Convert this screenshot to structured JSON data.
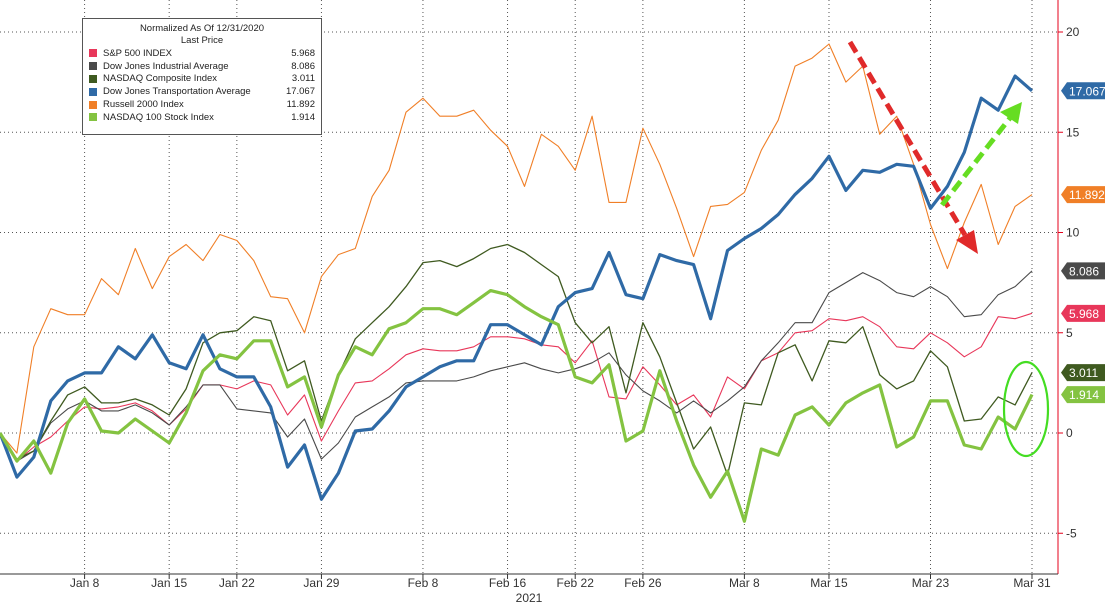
{
  "legend": {
    "header": "Normalized As Of 12/31/2020",
    "subheader": "Last Price"
  },
  "chart_data": {
    "type": "line",
    "x": [
      "2020-12-31",
      "2021-01-04",
      "2021-01-05",
      "2021-01-06",
      "2021-01-07",
      "2021-01-08",
      "2021-01-11",
      "2021-01-12",
      "2021-01-13",
      "2021-01-14",
      "2021-01-15",
      "2021-01-19",
      "2021-01-20",
      "2021-01-21",
      "2021-01-22",
      "2021-01-25",
      "2021-01-26",
      "2021-01-27",
      "2021-01-28",
      "2021-01-29",
      "2021-02-01",
      "2021-02-02",
      "2021-02-03",
      "2021-02-04",
      "2021-02-05",
      "2021-02-08",
      "2021-02-09",
      "2021-02-10",
      "2021-02-11",
      "2021-02-12",
      "2021-02-16",
      "2021-02-17",
      "2021-02-18",
      "2021-02-19",
      "2021-02-22",
      "2021-02-23",
      "2021-02-24",
      "2021-02-25",
      "2021-02-26",
      "2021-03-01",
      "2021-03-02",
      "2021-03-03",
      "2021-03-04",
      "2021-03-05",
      "2021-03-08",
      "2021-03-09",
      "2021-03-10",
      "2021-03-11",
      "2021-03-12",
      "2021-03-15",
      "2021-03-16",
      "2021-03-17",
      "2021-03-18",
      "2021-03-19",
      "2021-03-22",
      "2021-03-23",
      "2021-03-24",
      "2021-03-25",
      "2021-03-26",
      "2021-03-29",
      "2021-03-30",
      "2021-03-31"
    ],
    "xlabel": "2021",
    "x_ticks": [
      {
        "label": "Jan 8",
        "x": "2021-01-08"
      },
      {
        "label": "Jan 15",
        "x": "2021-01-15"
      },
      {
        "label": "Jan 22",
        "x": "2021-01-22"
      },
      {
        "label": "Jan 29",
        "x": "2021-01-29"
      },
      {
        "label": "Feb 8",
        "x": "2021-02-08"
      },
      {
        "label": "Feb 16",
        "x": "2021-02-16"
      },
      {
        "label": "Feb 22",
        "x": "2021-02-22"
      },
      {
        "label": "Feb 26",
        "x": "2021-02-26"
      },
      {
        "label": "Mar 8",
        "x": "2021-03-08"
      },
      {
        "label": "Mar 15",
        "x": "2021-03-15"
      },
      {
        "label": "Mar 23",
        "x": "2021-03-23"
      },
      {
        "label": "Mar 31",
        "x": "2021-03-31"
      }
    ],
    "ylim": [
      -7,
      21.5
    ],
    "y_ticks": [
      20,
      15,
      10,
      5,
      0,
      -5
    ],
    "grid": true,
    "legend_position": "top-left",
    "series": [
      {
        "name": "S&P 500 INDEX",
        "last": "5.968",
        "color": "#e8375a",
        "width": 1.1,
        "values": [
          0,
          -1.4,
          -0.7,
          -0.2,
          0.6,
          1.3,
          1.2,
          1.3,
          1.5,
          1.1,
          0.4,
          1.2,
          2.4,
          2.4,
          2.2,
          2.6,
          2.4,
          0.9,
          1.9,
          -0.4,
          1.1,
          2.5,
          2.6,
          3.2,
          3.9,
          4.2,
          4.1,
          4.1,
          4.3,
          4.8,
          4.8,
          4.7,
          4.4,
          4.3,
          3.5,
          4.6,
          1.8,
          1.7,
          3.3,
          2.4,
          1.4,
          1.9,
          0.8,
          2.8,
          2.2,
          3.6,
          4.0,
          5.0,
          5.1,
          5.7,
          5.6,
          5.8,
          5.3,
          4.3,
          4.2,
          5.0,
          4.5,
          3.8,
          4.3,
          5.8,
          5.7,
          5.968
        ]
      },
      {
        "name": "Dow Jones Industrial Average",
        "last": "8.086",
        "color": "#4a4a4a",
        "width": 1.1,
        "values": [
          0,
          -1.4,
          -0.9,
          0.5,
          1.2,
          1.6,
          1.1,
          1.1,
          1.4,
          1.0,
          0.4,
          1.3,
          2.4,
          2.4,
          1.2,
          1.1,
          1.0,
          -0.2,
          0.7,
          -1.3,
          -0.5,
          0.8,
          1.3,
          1.8,
          2.5,
          2.6,
          2.6,
          2.6,
          2.8,
          3.1,
          3.3,
          3.5,
          3.2,
          3.0,
          3.2,
          3.5,
          4.0,
          2.9,
          2.1,
          1.6,
          1.0,
          1.6,
          1.0,
          1.6,
          2.3,
          3.6,
          4.5,
          5.5,
          5.5,
          7.0,
          7.5,
          8.0,
          7.6,
          7.0,
          6.8,
          7.3,
          6.8,
          5.8,
          5.9,
          6.9,
          7.3,
          8.086
        ]
      },
      {
        "name": "NASDAQ Composite Index",
        "last": "3.011",
        "color": "#3f5a20",
        "width": 1.3,
        "values": [
          0,
          -1.3,
          -0.9,
          0.6,
          1.9,
          2.3,
          1.5,
          1.5,
          1.7,
          1.4,
          0.9,
          2.2,
          4.5,
          5.0,
          5.1,
          5.8,
          5.6,
          3.1,
          3.6,
          0.6,
          2.9,
          4.7,
          5.5,
          6.3,
          7.3,
          8.5,
          8.6,
          8.3,
          8.7,
          9.2,
          9.4,
          9.0,
          8.4,
          7.8,
          5.5,
          4.5,
          5.3,
          2.0,
          5.5,
          3.8,
          1.5,
          -0.8,
          0.3,
          -2.1,
          1.5,
          1.4,
          4.0,
          4.4,
          2.6,
          4.6,
          4.5,
          5.3,
          2.9,
          2.2,
          2.6,
          4.1,
          3.3,
          0.6,
          0.7,
          1.8,
          1.4,
          3.011
        ]
      },
      {
        "name": "Dow Jones Transportation Average",
        "last": "17.067",
        "color": "#2f6aa6",
        "width": 3.2,
        "values": [
          0,
          -2.2,
          -1.2,
          1.6,
          2.6,
          3.0,
          3.0,
          4.3,
          3.7,
          4.9,
          3.5,
          3.2,
          4.9,
          3.2,
          2.8,
          2.8,
          1.3,
          -1.7,
          -0.6,
          -3.3,
          -2.0,
          0.1,
          0.2,
          1.1,
          2.3,
          2.8,
          3.3,
          3.6,
          3.6,
          5.4,
          5.4,
          4.9,
          4.4,
          6.3,
          7.0,
          7.2,
          9.0,
          6.9,
          6.7,
          8.9,
          8.6,
          8.4,
          5.7,
          9.1,
          9.7,
          10.2,
          10.9,
          11.9,
          12.7,
          13.8,
          12.1,
          13.1,
          13.0,
          13.4,
          13.3,
          11.2,
          12.3,
          14.0,
          16.7,
          16.1,
          17.8,
          17.067
        ]
      },
      {
        "name": "Russell 2000 Index",
        "last": "11.892",
        "color": "#f07f27",
        "width": 1.1,
        "values": [
          0,
          -1.0,
          4.3,
          6.2,
          5.9,
          5.9,
          7.7,
          6.9,
          9.2,
          7.2,
          8.8,
          9.4,
          8.6,
          9.9,
          9.6,
          8.6,
          6.8,
          6.7,
          5.0,
          7.8,
          8.9,
          9.2,
          11.8,
          13.1,
          16.0,
          16.7,
          15.8,
          15.8,
          16.1,
          15.1,
          14.3,
          12.3,
          14.9,
          14.3,
          13.1,
          15.8,
          11.5,
          11.5,
          15.2,
          13.4,
          11.2,
          8.8,
          11.3,
          11.4,
          12.0,
          14.1,
          15.6,
          18.3,
          18.7,
          19.4,
          17.5,
          18.3,
          14.9,
          15.8,
          13.4,
          10.4,
          8.2,
          10.5,
          12.4,
          9.4,
          11.3,
          11.892
        ]
      },
      {
        "name": "NASDAQ 100 Stock Index",
        "last": "1.914",
        "color": "#84c341",
        "width": 3.2,
        "values": [
          0,
          -1.4,
          -0.4,
          -2.0,
          0.5,
          1.7,
          0.1,
          0.0,
          0.7,
          0.1,
          -0.5,
          1.0,
          3.1,
          3.9,
          3.7,
          4.6,
          4.6,
          2.3,
          2.8,
          0.3,
          2.9,
          4.3,
          3.9,
          5.2,
          5.5,
          6.2,
          6.2,
          5.9,
          6.5,
          7.1,
          6.9,
          6.3,
          5.8,
          5.4,
          2.8,
          2.5,
          3.4,
          -0.4,
          0.1,
          3.1,
          0.6,
          -1.6,
          -3.2,
          -1.9,
          -4.4,
          -0.8,
          -1.1,
          0.9,
          1.3,
          0.4,
          1.5,
          2.0,
          2.4,
          -0.7,
          -0.2,
          1.6,
          1.6,
          -0.6,
          -0.8,
          0.8,
          0.2,
          1.914
        ]
      }
    ]
  }
}
